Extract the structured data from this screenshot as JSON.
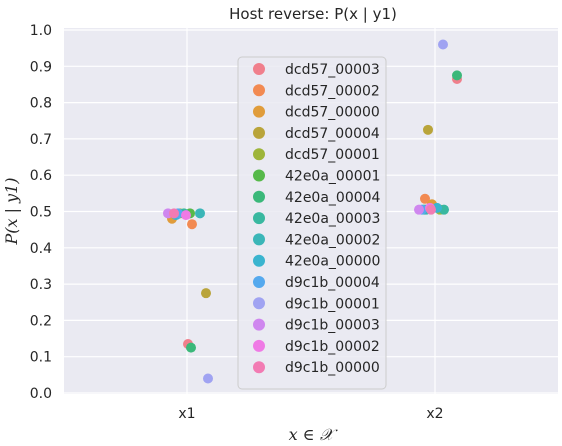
{
  "chart_data": {
    "type": "scatter",
    "title": "Host reverse: P(x | y1)",
    "xlabel": "x ∈ 𝒳",
    "ylabel": "P(x | y1)",
    "categories": [
      "x1",
      "x2"
    ],
    "ylim": [
      0.0,
      1.0
    ],
    "yticks": [
      "0.0",
      "0.1",
      "0.2",
      "0.3",
      "0.4",
      "0.5",
      "0.6",
      "0.7",
      "0.8",
      "0.9",
      "1.0"
    ],
    "grid": true,
    "legend_position": "center",
    "series": [
      {
        "name": "dcd57_00003",
        "color": "#f07f8c",
        "values": [
          0.135,
          0.865
        ]
      },
      {
        "name": "dcd57_00002",
        "color": "#f28a52",
        "values": [
          0.465,
          0.535
        ]
      },
      {
        "name": "dcd57_00000",
        "color": "#e09c3b",
        "values": [
          0.48,
          0.52
        ]
      },
      {
        "name": "dcd57_00004",
        "color": "#b9a43a",
        "values": [
          0.275,
          0.725
        ]
      },
      {
        "name": "dcd57_00001",
        "color": "#9eb53a",
        "values": [
          0.495,
          0.505
        ]
      },
      {
        "name": "42e0a_00001",
        "color": "#56b94a",
        "values": [
          0.495,
          0.505
        ]
      },
      {
        "name": "42e0a_00004",
        "color": "#3bb87a",
        "values": [
          0.125,
          0.875
        ]
      },
      {
        "name": "42e0a_00003",
        "color": "#39b8a0",
        "values": [
          0.495,
          0.505
        ]
      },
      {
        "name": "42e0a_00002",
        "color": "#3bb6b8",
        "values": [
          0.495,
          0.505
        ]
      },
      {
        "name": "42e0a_00000",
        "color": "#3ab4cf",
        "values": [
          0.49,
          0.51
        ]
      },
      {
        "name": "d9c1b_00004",
        "color": "#55a9ee",
        "values": [
          0.495,
          0.505
        ]
      },
      {
        "name": "d9c1b_00001",
        "color": "#a0a3f2",
        "values": [
          0.04,
          0.96
        ]
      },
      {
        "name": "d9c1b_00003",
        "color": "#cf87ef",
        "values": [
          0.495,
          0.505
        ]
      },
      {
        "name": "d9c1b_00002",
        "color": "#ef7ae5",
        "values": [
          0.49,
          0.51
        ]
      },
      {
        "name": "d9c1b_00000",
        "color": "#f27bb3",
        "values": [
          0.495,
          0.505
        ]
      }
    ]
  }
}
